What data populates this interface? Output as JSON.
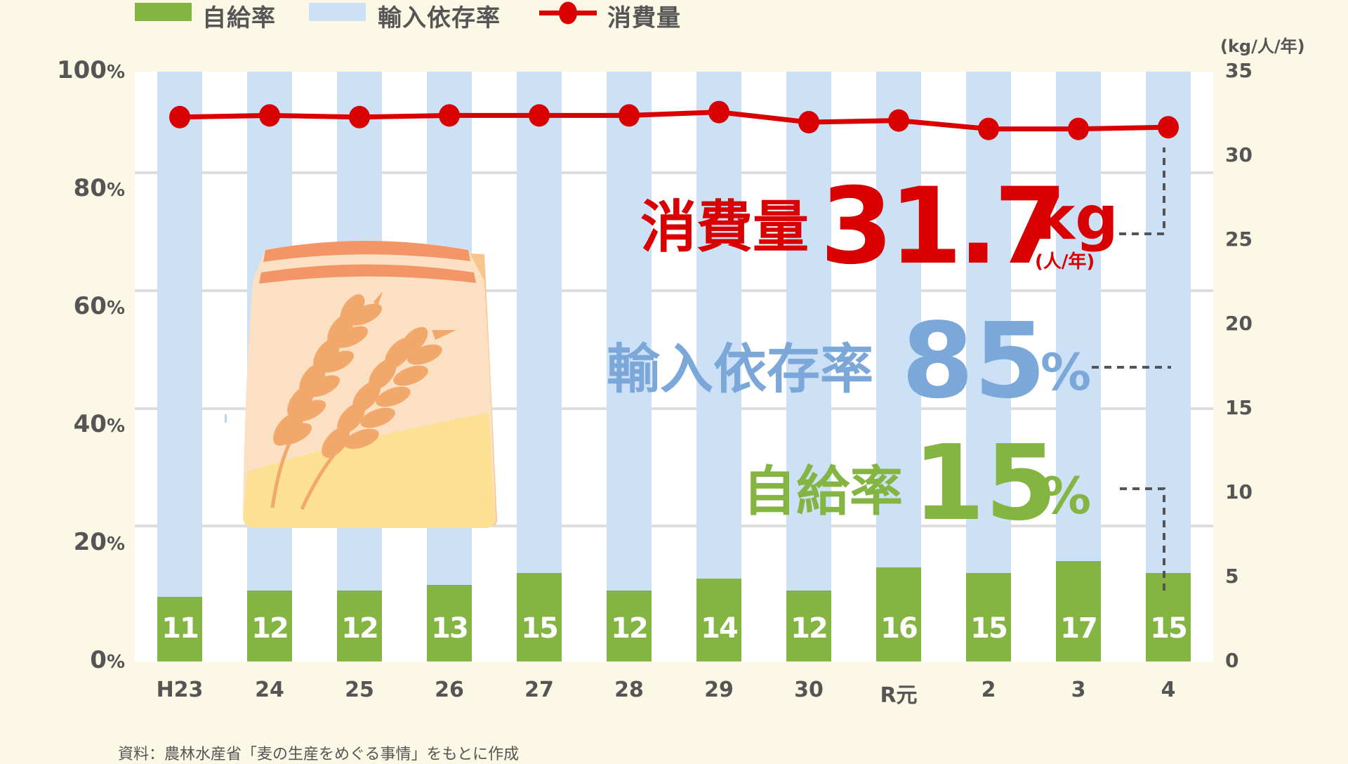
{
  "legend": {
    "self_sufficiency": {
      "label": "自給率",
      "color": "#84b441"
    },
    "import_dependency": {
      "label": "輸入依存率",
      "color": "#cce0f6"
    },
    "consumption": {
      "label": "消費量",
      "color": "#d80000"
    }
  },
  "axes": {
    "left_ticks": [
      {
        "num": "100",
        "pct": "%"
      },
      {
        "num": "80",
        "pct": "%"
      },
      {
        "num": "60",
        "pct": "%"
      },
      {
        "num": "40",
        "pct": "%"
      },
      {
        "num": "20",
        "pct": "%"
      },
      {
        "num": "0",
        "pct": "%"
      }
    ],
    "right_unit": "(kg/人/年)",
    "right_ticks": [
      "35",
      "30",
      "25",
      "20",
      "15",
      "10",
      "5",
      "0"
    ]
  },
  "callouts": {
    "consumption": {
      "label": "消費量",
      "value": "31.7",
      "unit": "kg",
      "subunit": "(人/年)",
      "color": "#d80000"
    },
    "import_dependency": {
      "label": "輸入依存率",
      "value": "85",
      "unit": "%",
      "color": "#7ba7d9"
    },
    "self_sufficiency": {
      "label": "自給率",
      "value": "15",
      "unit": "%",
      "color": "#84b441"
    }
  },
  "source": "資料：農林水産省「麦の生産をめぐる事情」をもとに作成",
  "chart_data": {
    "type": "bar",
    "title": "",
    "categories": [
      "H23",
      "24",
      "25",
      "26",
      "27",
      "28",
      "29",
      "30",
      "R元",
      "2",
      "3",
      "4"
    ],
    "series": [
      {
        "name": "自給率",
        "type": "stacked-bar",
        "axis": "left",
        "unit": "%",
        "color": "#84b441",
        "values": [
          11,
          12,
          12,
          13,
          15,
          12,
          14,
          12,
          16,
          15,
          17,
          15
        ]
      },
      {
        "name": "輸入依存率",
        "type": "stacked-bar",
        "axis": "left",
        "unit": "%",
        "color": "#cce0f6",
        "values": [
          89,
          88,
          88,
          87,
          85,
          88,
          86,
          88,
          84,
          85,
          83,
          85
        ]
      },
      {
        "name": "消費量",
        "type": "line",
        "axis": "right",
        "unit": "kg/人/年",
        "color": "#d80000",
        "values": [
          32.3,
          32.4,
          32.3,
          32.4,
          32.4,
          32.4,
          32.6,
          32.0,
          32.1,
          31.6,
          31.6,
          31.7
        ]
      }
    ],
    "xlabel": "",
    "ylabel_left": "%",
    "ylabel_right": "(kg/人/年)",
    "ylim_left": [
      0,
      100
    ],
    "ylim_right": [
      0,
      35
    ],
    "yticks_left": [
      "0%",
      "20%",
      "40%",
      "60%",
      "80%",
      "100%"
    ],
    "yticks_right": [
      0,
      5,
      10,
      15,
      20,
      25,
      30,
      35
    ],
    "grid": true,
    "legend_position": "top",
    "annotations": [
      "消費量 31.7kg(人/年)",
      "輸入依存率 85%",
      "自給率 15%"
    ]
  }
}
